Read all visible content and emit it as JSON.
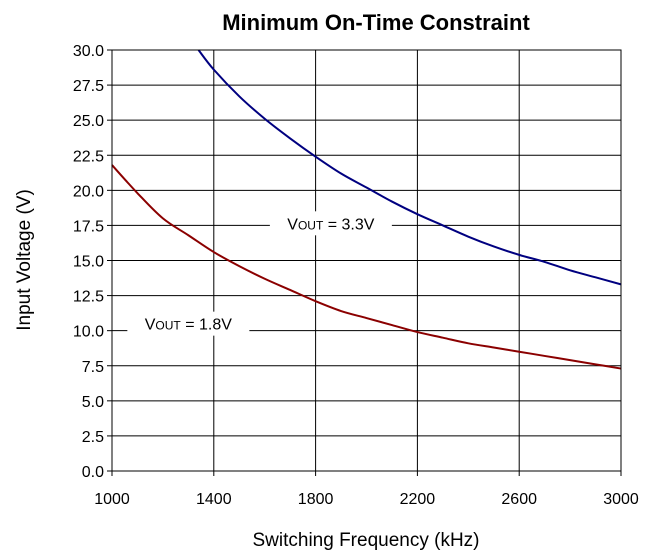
{
  "chart_data": {
    "type": "line",
    "title": "Minimum On-Time Constraint",
    "xlabel": "Switching Frequency (kHz)",
    "ylabel": "Input Voltage (V)",
    "xlim": [
      1000,
      3000
    ],
    "ylim": [
      0.0,
      30.0
    ],
    "x_ticks": [
      "1000",
      "1400",
      "1800",
      "2200",
      "2600",
      "3000"
    ],
    "y_ticks": [
      "0.0",
      "2.5",
      "5.0",
      "7.5",
      "10.0",
      "12.5",
      "15.0",
      "17.5",
      "20.0",
      "22.5",
      "25.0",
      "27.5",
      "30.0"
    ],
    "grid": true,
    "series": [
      {
        "name": "VOUT = 3.3V",
        "label_main": "V",
        "label_sub": "OUT",
        "label_rest": " = 3.3V",
        "color": "#000080",
        "x": [
          1340,
          1400,
          1500,
          1600,
          1700,
          1800,
          1900,
          2000,
          2100,
          2200,
          2300,
          2400,
          2500,
          2600,
          2700,
          2800,
          2900,
          3000
        ],
        "y": [
          30.0,
          28.6,
          26.7,
          25.1,
          23.7,
          22.4,
          21.2,
          20.2,
          19.2,
          18.3,
          17.5,
          16.7,
          16.0,
          15.4,
          14.9,
          14.3,
          13.8,
          13.3
        ]
      },
      {
        "name": "VOUT = 1.8V",
        "label_main": "V",
        "label_sub": "OUT",
        "label_rest": " = 1.8V",
        "color": "#8b0000",
        "x": [
          1000,
          1100,
          1200,
          1300,
          1400,
          1500,
          1600,
          1700,
          1800,
          1900,
          2000,
          2100,
          2200,
          2300,
          2400,
          2500,
          2600,
          2700,
          2800,
          2900,
          3000
        ],
        "y": [
          21.8,
          19.8,
          18.0,
          16.8,
          15.6,
          14.6,
          13.7,
          12.9,
          12.1,
          11.4,
          10.9,
          10.4,
          9.9,
          9.5,
          9.1,
          8.8,
          8.5,
          8.2,
          7.9,
          7.6,
          7.3
        ]
      }
    ]
  }
}
